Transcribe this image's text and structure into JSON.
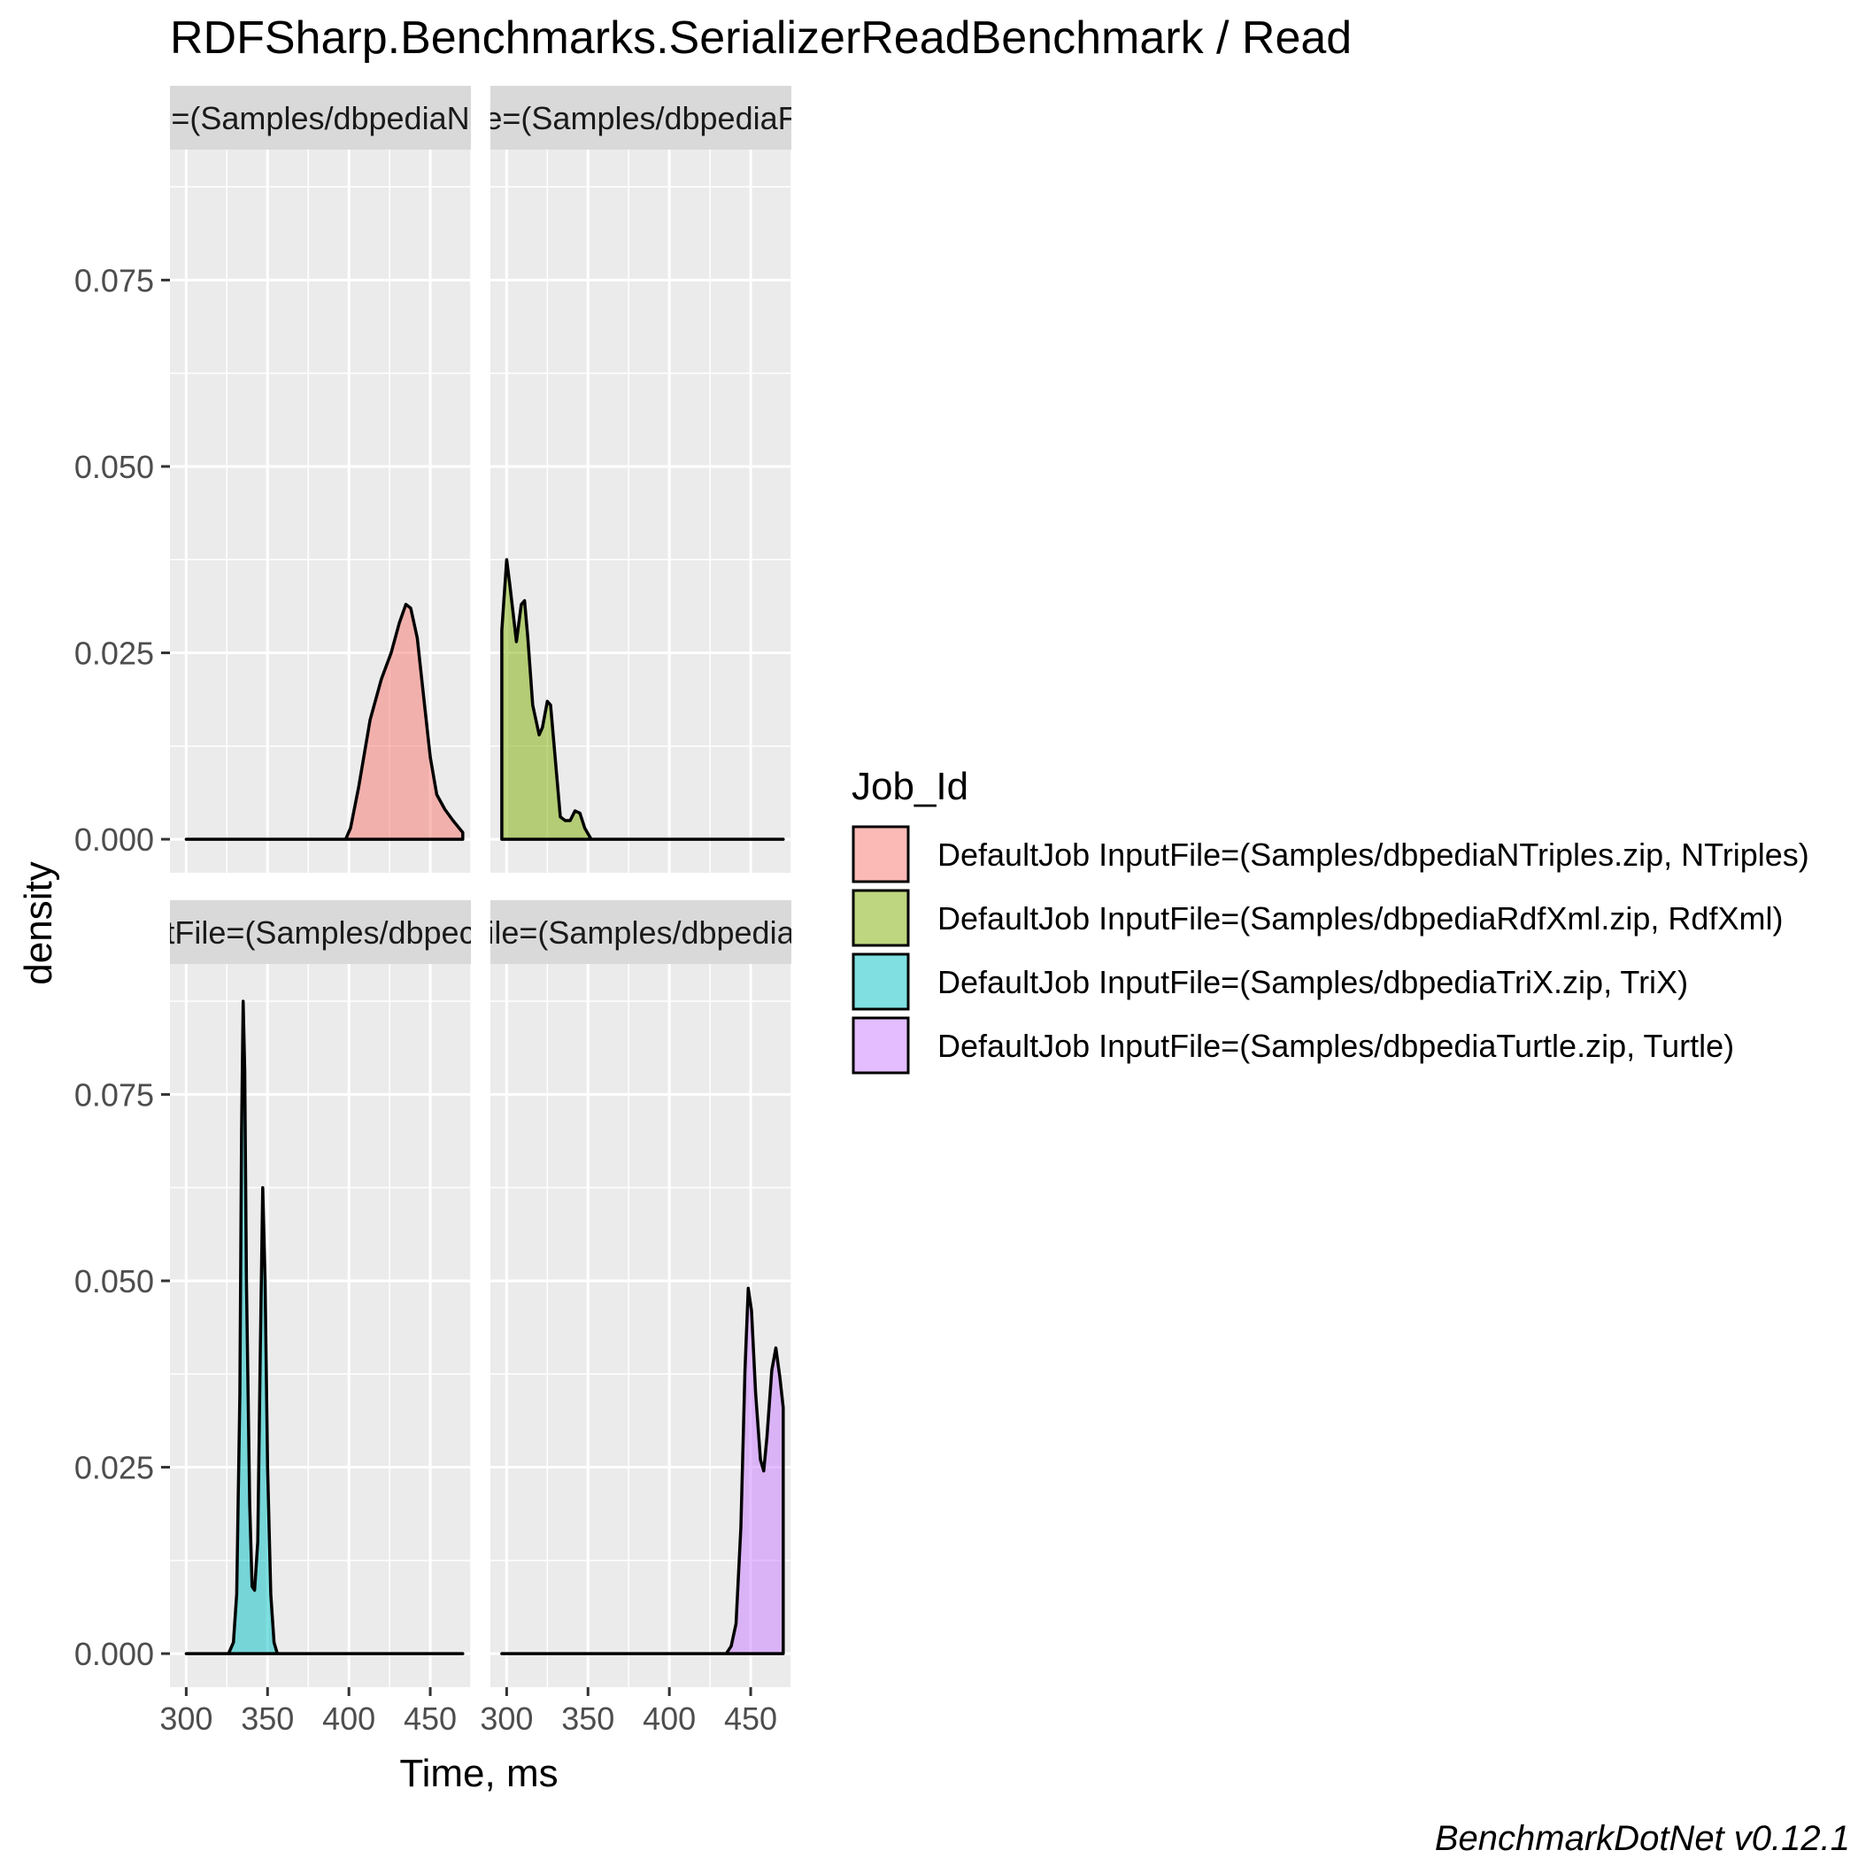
{
  "title": "RDFSharp.Benchmarks.SerializerReadBenchmark / Read",
  "caption": "BenchmarkDotNet v0.12.1",
  "chart_data": {
    "type": "area",
    "xlabel": "Time, ms",
    "ylabel": "density",
    "xlim": [
      290,
      475
    ],
    "ylim": [
      -0.0045,
      0.0925
    ],
    "x_ticks": [
      300,
      350,
      400,
      450
    ],
    "x_tick_labels": [
      "300",
      "350",
      "400",
      "450"
    ],
    "y_ticks": [
      0,
      0.025,
      0.05,
      0.075
    ],
    "y_tick_labels": [
      "0.000",
      "0.025",
      "0.050",
      "0.075"
    ],
    "grid": true,
    "legend": {
      "title": "Job_Id",
      "position": "right"
    },
    "series": [
      {
        "name": "DefaultJob InputFile=(Samples/dbpediaNTriples.zip, NTriples)",
        "strip_label": "=(Samples/dbpediaN",
        "color": "#F8766D",
        "points": [
          [
            300,
            0
          ],
          [
            390,
            0
          ],
          [
            398,
            0
          ],
          [
            401,
            0.0015
          ],
          [
            406,
            0.007
          ],
          [
            413,
            0.016
          ],
          [
            420,
            0.0215
          ],
          [
            426,
            0.025
          ],
          [
            431,
            0.029
          ],
          [
            435,
            0.0315
          ],
          [
            438,
            0.031
          ],
          [
            442,
            0.027
          ],
          [
            446,
            0.019
          ],
          [
            450,
            0.011
          ],
          [
            454,
            0.006
          ],
          [
            459,
            0.004
          ],
          [
            464,
            0.0025
          ],
          [
            470,
            0.0009
          ],
          [
            470,
            0
          ]
        ]
      },
      {
        "name": "DefaultJob InputFile=(Samples/dbpediaRdfXml.zip, RdfXml)",
        "strip_label": "e=(Samples/dbpediaF",
        "color": "#7CAE00",
        "points": [
          [
            297,
            0
          ],
          [
            297,
            0.028
          ],
          [
            300,
            0.0375
          ],
          [
            302,
            0.034
          ],
          [
            306,
            0.0265
          ],
          [
            309,
            0.0315
          ],
          [
            311,
            0.032
          ],
          [
            313,
            0.027
          ],
          [
            316,
            0.018
          ],
          [
            320,
            0.014
          ],
          [
            322,
            0.015
          ],
          [
            325,
            0.0185
          ],
          [
            327,
            0.018
          ],
          [
            330,
            0.0105
          ],
          [
            333,
            0.003
          ],
          [
            336,
            0.0025
          ],
          [
            339,
            0.0025
          ],
          [
            342,
            0.0038
          ],
          [
            345,
            0.0035
          ],
          [
            348,
            0.0015
          ],
          [
            352,
            0
          ],
          [
            470,
            0
          ]
        ]
      },
      {
        "name": "DefaultJob InputFile=(Samples/dbpediaTriX.zip, TriX)",
        "strip_label": "tFile=(Samples/dbpec",
        "color": "#00BFC4",
        "points": [
          [
            300,
            0
          ],
          [
            326,
            0
          ],
          [
            329,
            0.0015
          ],
          [
            331,
            0.008
          ],
          [
            333,
            0.035
          ],
          [
            334,
            0.07
          ],
          [
            335,
            0.0875
          ],
          [
            336,
            0.078
          ],
          [
            337,
            0.05
          ],
          [
            339,
            0.02
          ],
          [
            340.5,
            0.009
          ],
          [
            342,
            0.0085
          ],
          [
            344,
            0.015
          ],
          [
            345.5,
            0.04
          ],
          [
            347,
            0.0625
          ],
          [
            348.5,
            0.05
          ],
          [
            350,
            0.025
          ],
          [
            352,
            0.008
          ],
          [
            354,
            0.0015
          ],
          [
            356,
            0
          ],
          [
            470,
            0
          ]
        ]
      },
      {
        "name": "DefaultJob InputFile=(Samples/dbpediaTurtle.zip, Turtle)",
        "strip_label": "ile=(Samples/dbpedia",
        "color": "#C77CFF",
        "points": [
          [
            297,
            0
          ],
          [
            435,
            0
          ],
          [
            438,
            0.001
          ],
          [
            441,
            0.004
          ],
          [
            444,
            0.017
          ],
          [
            446.5,
            0.038
          ],
          [
            448.5,
            0.049
          ],
          [
            450.5,
            0.046
          ],
          [
            453,
            0.035
          ],
          [
            456,
            0.026
          ],
          [
            458,
            0.0245
          ],
          [
            460,
            0.029
          ],
          [
            463,
            0.038
          ],
          [
            465.5,
            0.041
          ],
          [
            468,
            0.037
          ],
          [
            470,
            0.033
          ],
          [
            470,
            0
          ]
        ]
      }
    ]
  }
}
